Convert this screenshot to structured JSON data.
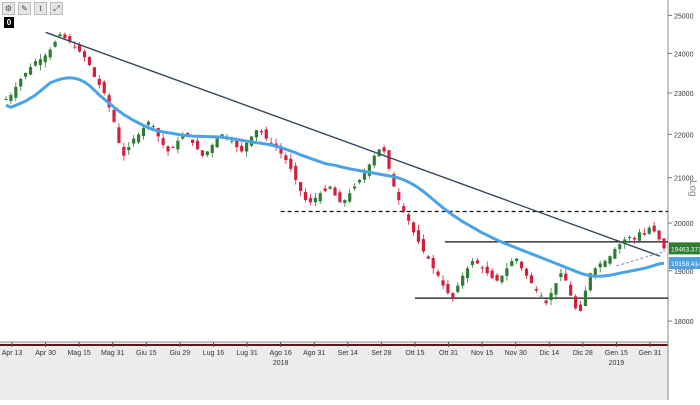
{
  "toolbar": {
    "zero_badge": "0"
  },
  "chart_data": {
    "type": "candlestick",
    "log_scale": true,
    "scale_label": "Log",
    "ylim": [
      17600,
      25200
    ],
    "y_ticks": [
      {
        "label": "18000",
        "value": 18000
      },
      {
        "label": "19000",
        "value": 19000
      },
      {
        "label": "20000",
        "value": 20000
      },
      {
        "label": "21000",
        "value": 21000
      },
      {
        "label": "22000",
        "value": 22000
      },
      {
        "label": "23000",
        "value": 23000
      },
      {
        "label": "24000",
        "value": 24000
      },
      {
        "label": "25000",
        "value": 25000
      }
    ],
    "x_ticks": [
      "Apr 13",
      "Apr 30",
      "Mag 15",
      "Mag 31",
      "Giu 15",
      "Giu 29",
      "Lug 16",
      "Lug 31",
      "Ago 16",
      "Ago 31",
      "Set 14",
      "Set 28",
      "Ott 15",
      "Ott 31",
      "Nov 15",
      "Nov 30",
      "Dic 14",
      "Dic 28",
      "Gen 15",
      "Gen 31"
    ],
    "year_labels": [
      {
        "label": "2018",
        "after_tick": "Ago 16"
      },
      {
        "label": "2019",
        "after_tick": "Gen 15"
      }
    ],
    "closes": [
      22850,
      22950,
      23150,
      23350,
      23500,
      23650,
      23800,
      23850,
      23950,
      24100,
      24300,
      24500,
      24400,
      24300,
      24150,
      24050,
      23900,
      23700,
      23400,
      23200,
      23000,
      22650,
      22300,
      21800,
      21500,
      21700,
      21900,
      22000,
      22150,
      22300,
      22200,
      21950,
      21750,
      21600,
      21700,
      21850,
      21950,
      22000,
      21800,
      21650,
      21500,
      21600,
      21750,
      21900,
      22000,
      21950,
      21850,
      21700,
      21600,
      21800,
      21950,
      22100,
      22050,
      21900,
      21800,
      21700,
      21550,
      21400,
      21200,
      20950,
      20700,
      20500,
      20450,
      20550,
      20650,
      20700,
      20800,
      20600,
      20450,
      20500,
      20650,
      20800,
      20950,
      21100,
      21300,
      21500,
      21650,
      21600,
      21200,
      20800,
      20500,
      20250,
      20050,
      19800,
      19600,
      19400,
      19250,
      19050,
      18900,
      18700,
      18550,
      18450,
      18700,
      18900,
      19050,
      19200,
      19150,
      19050,
      18950,
      18850,
      18800,
      18900,
      19050,
      19200,
      19250,
      19050,
      18900,
      18750,
      18600,
      18500,
      18350,
      18550,
      18750,
      18950,
      18800,
      18500,
      18250,
      18200,
      18600,
      18950,
      19050,
      19150,
      19200,
      19300,
      19450,
      19550,
      19650,
      19700,
      19650,
      19800,
      19750,
      19900,
      19820,
      19650,
      19463
    ],
    "series": [
      {
        "name": "",
        "label": "19463.3713",
        "color": "#2e7d32",
        "value": 19463.3713
      },
      {
        "name": "",
        "label": "19158.4141",
        "color": "#4aa3e6",
        "value": 19158.4141
      }
    ],
    "moving_average": [
      22700,
      22650,
      22700,
      22750,
      22800,
      22880,
      22950,
      23050,
      23150,
      23250,
      23300,
      23340,
      23370,
      23380,
      23370,
      23330,
      23270,
      23180,
      23070,
      22950,
      22850,
      22750,
      22650,
      22560,
      22470,
      22400,
      22330,
      22270,
      22210,
      22160,
      22110,
      22080,
      22060,
      22040,
      22020,
      22000,
      21980,
      21970,
      21960,
      21955,
      21950,
      21948,
      21945,
      21940,
      21930,
      21915,
      21900,
      21880,
      21860,
      21840,
      21820,
      21805,
      21790,
      21770,
      21750,
      21720,
      21690,
      21650,
      21610,
      21570,
      21520,
      21480,
      21440,
      21400,
      21360,
      21320,
      21300,
      21280,
      21250,
      21225,
      21200,
      21180,
      21160,
      21140,
      21120,
      21100,
      21080,
      21060,
      21040,
      21020,
      20990,
      20950,
      20900,
      20840,
      20770,
      20690,
      20600,
      20510,
      20420,
      20330,
      20250,
      20170,
      20100,
      20030,
      19970,
      19910,
      19850,
      19790,
      19740,
      19690,
      19640,
      19590,
      19550,
      19510,
      19470,
      19430,
      19390,
      19350,
      19310,
      19270,
      19230,
      19190,
      19150,
      19110,
      19070,
      19030,
      18990,
      18950,
      18920,
      18900,
      18890,
      18890,
      18900,
      18910,
      18930,
      18950,
      18970,
      18990,
      19010,
      19030,
      19050,
      19080,
      19110,
      19140,
      19158
    ],
    "trendline": {
      "start": {
        "x": "Apr 30",
        "y": 24550
      },
      "end": {
        "x": "Gen 31",
        "y": 19300
      }
    },
    "support_line": {
      "from": "Ago 16",
      "value": 20250,
      "style": "dashed"
    },
    "ranges": [
      {
        "label": "",
        "top": 19600,
        "bottom": 18450,
        "from": "Ott 15",
        "to": "end"
      }
    ],
    "dashed_trend": {
      "start": {
        "x": "Gen 15",
        "y": 19100
      },
      "end": {
        "x": "Gen 31",
        "y": 19400
      }
    },
    "colors": {
      "up": "#2e7d32",
      "down": "#d21f3c",
      "ma": "#4aa3e6",
      "trend": "#34495e"
    }
  }
}
